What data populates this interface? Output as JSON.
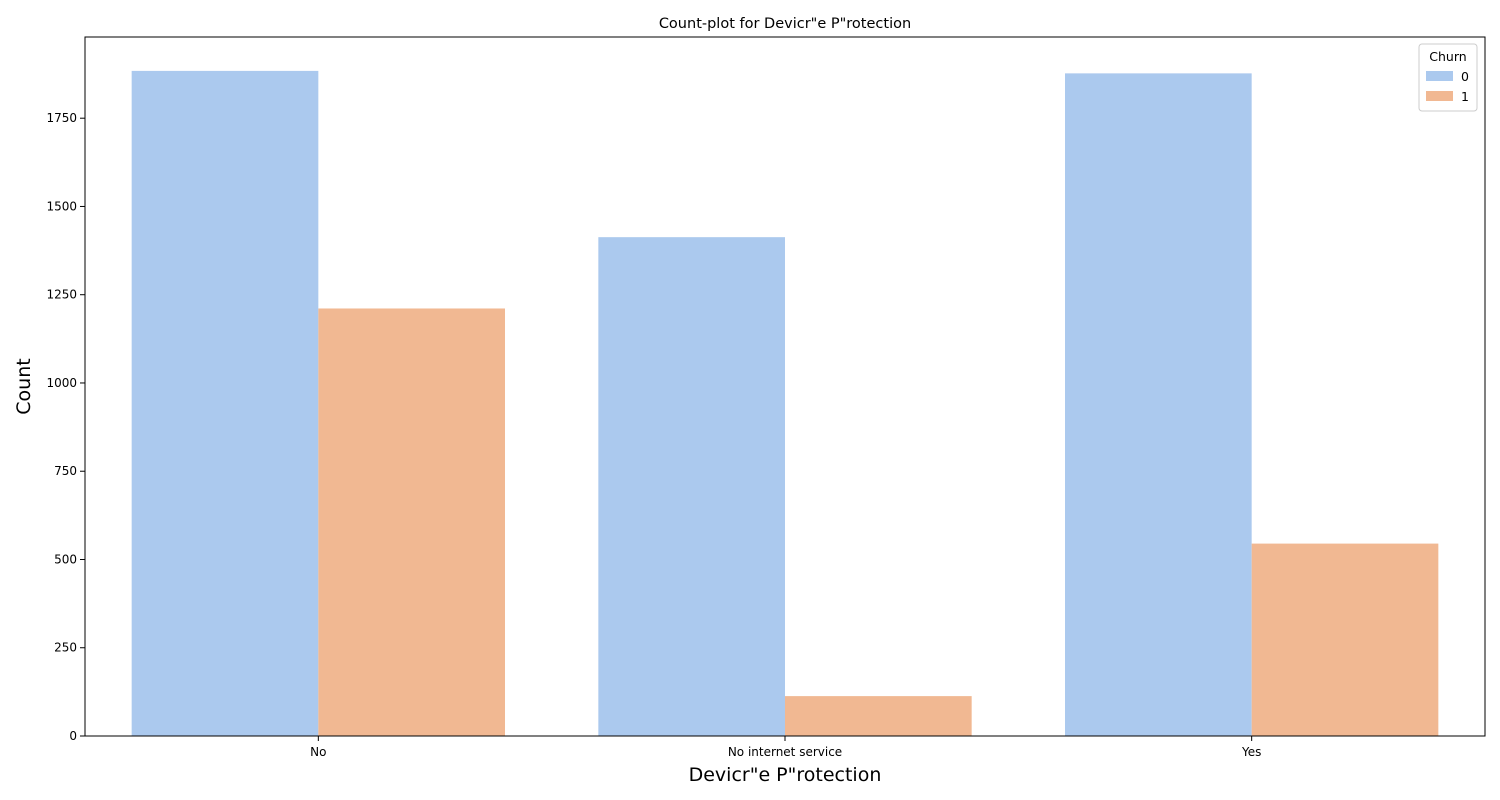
{
  "chart_data": {
    "type": "bar",
    "title": "Count-plot for Devicr\"e P\"rotection",
    "xlabel": "Devicr\"e P\"rotection",
    "ylabel": "Count",
    "categories": [
      "No",
      "No internet service",
      "Yes"
    ],
    "series": [
      {
        "name": "0",
        "values": [
          1884,
          1413,
          1877
        ],
        "color": "#abc9ee"
      },
      {
        "name": "1",
        "values": [
          1211,
          113,
          545
        ],
        "color": "#f1b892"
      }
    ],
    "ylim": [
      0,
      1980
    ],
    "yticks": [
      0,
      250,
      500,
      750,
      1000,
      1250,
      1500,
      1750
    ],
    "legend": {
      "title": "Churn",
      "position": "top-right"
    },
    "grid": false
  }
}
